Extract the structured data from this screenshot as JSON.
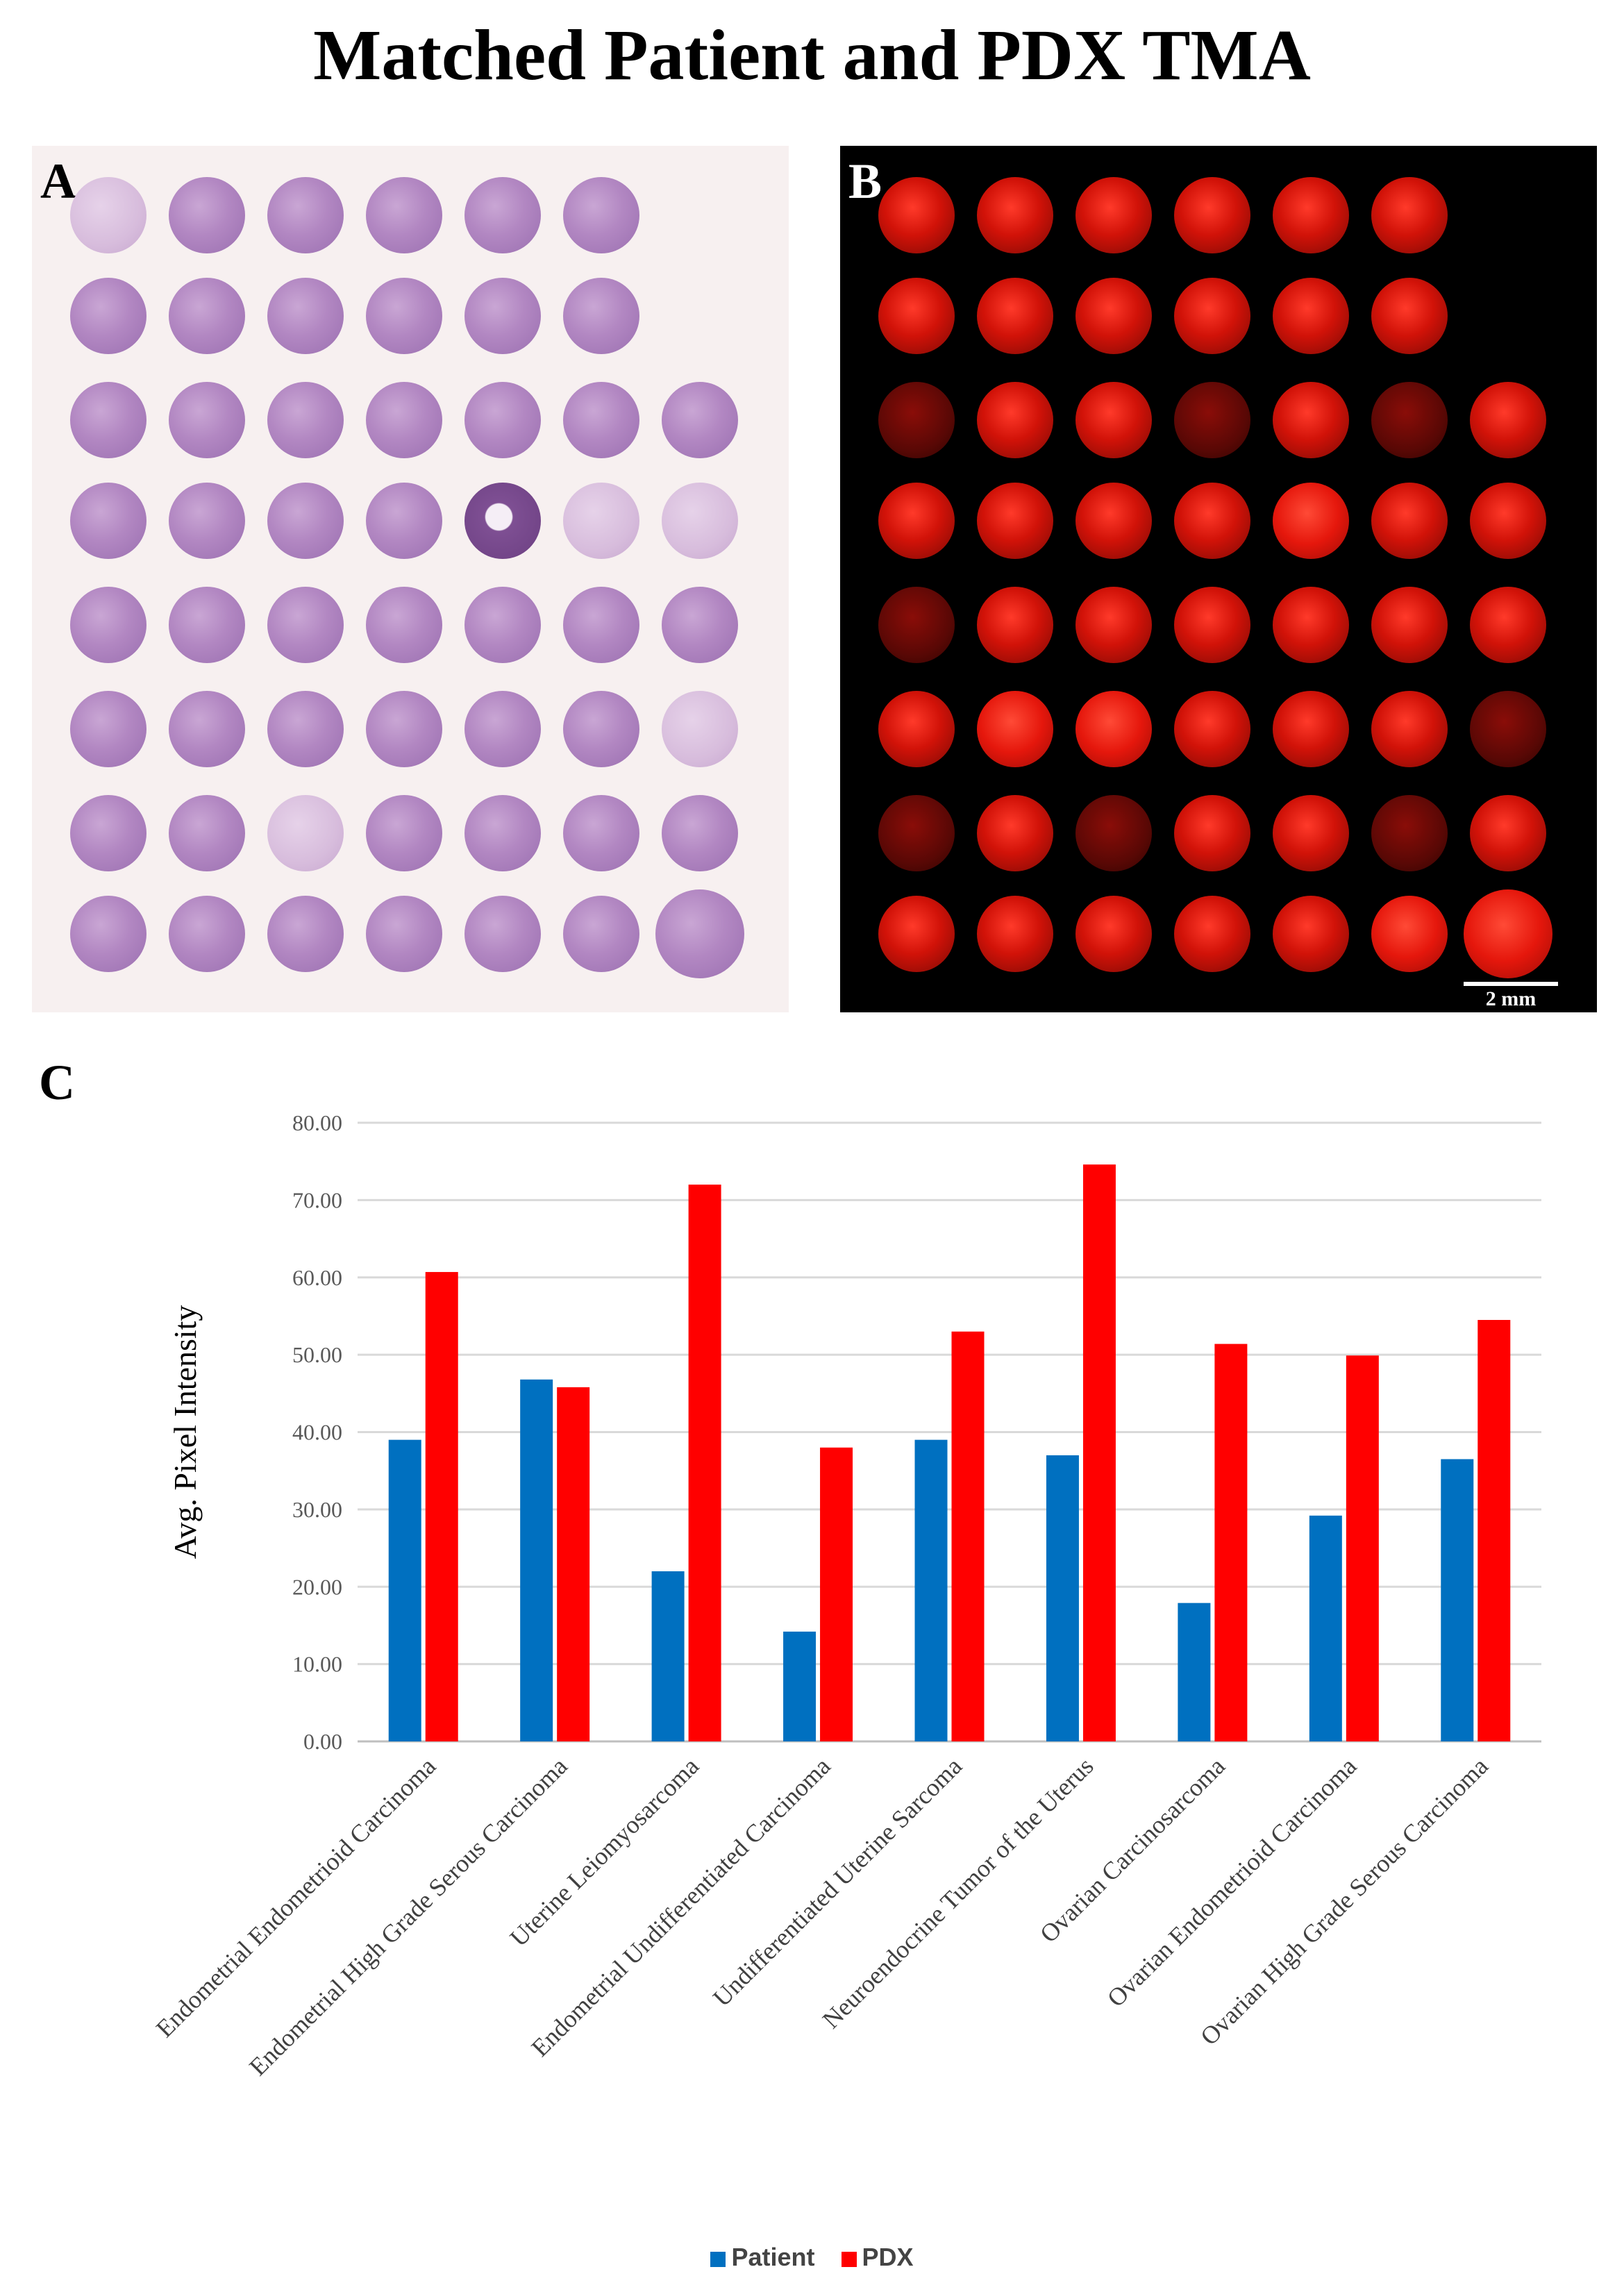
{
  "title": "Matched Patient and PDX TMA",
  "panels": {
    "a_label": "A",
    "b_label": "B",
    "c_label": "C"
  },
  "scale_bar": "2 mm",
  "colors": {
    "patient": "#0070c0",
    "pdx": "#ff0000"
  },
  "chart_data": {
    "type": "bar",
    "title": "",
    "xlabel": "",
    "ylabel": "Avg. Pixel Intensity",
    "ylim": [
      0,
      80
    ],
    "yticks": [
      "0.00",
      "10.00",
      "20.00",
      "30.00",
      "40.00",
      "50.00",
      "60.00",
      "70.00",
      "80.00"
    ],
    "categories": [
      "Endometrial Endometrioid Carcinoma",
      "Endometrial High Grade Serous Carcinoma",
      "Uterine Leiomyosarcoma",
      "Endometrial Undifferentiated Carcinoma",
      "Undifferentiated Uterine Sarcoma",
      "Neuroendocrine Tumor of the Uterus",
      "Ovarian Carcinosarcoma",
      "Ovarian Endometrioid Carcinoma",
      "Ovarian High Grade Serous Carcinoma"
    ],
    "series": [
      {
        "name": "Patient",
        "values": [
          39.0,
          46.8,
          22.0,
          14.2,
          39.0,
          37.0,
          17.9,
          29.2,
          36.5
        ]
      },
      {
        "name": "PDX",
        "values": [
          60.7,
          45.8,
          72.0,
          38.0,
          53.0,
          74.6,
          51.4,
          49.9,
          54.5
        ]
      }
    ],
    "legend_position": "bottom-center",
    "grid": true
  }
}
